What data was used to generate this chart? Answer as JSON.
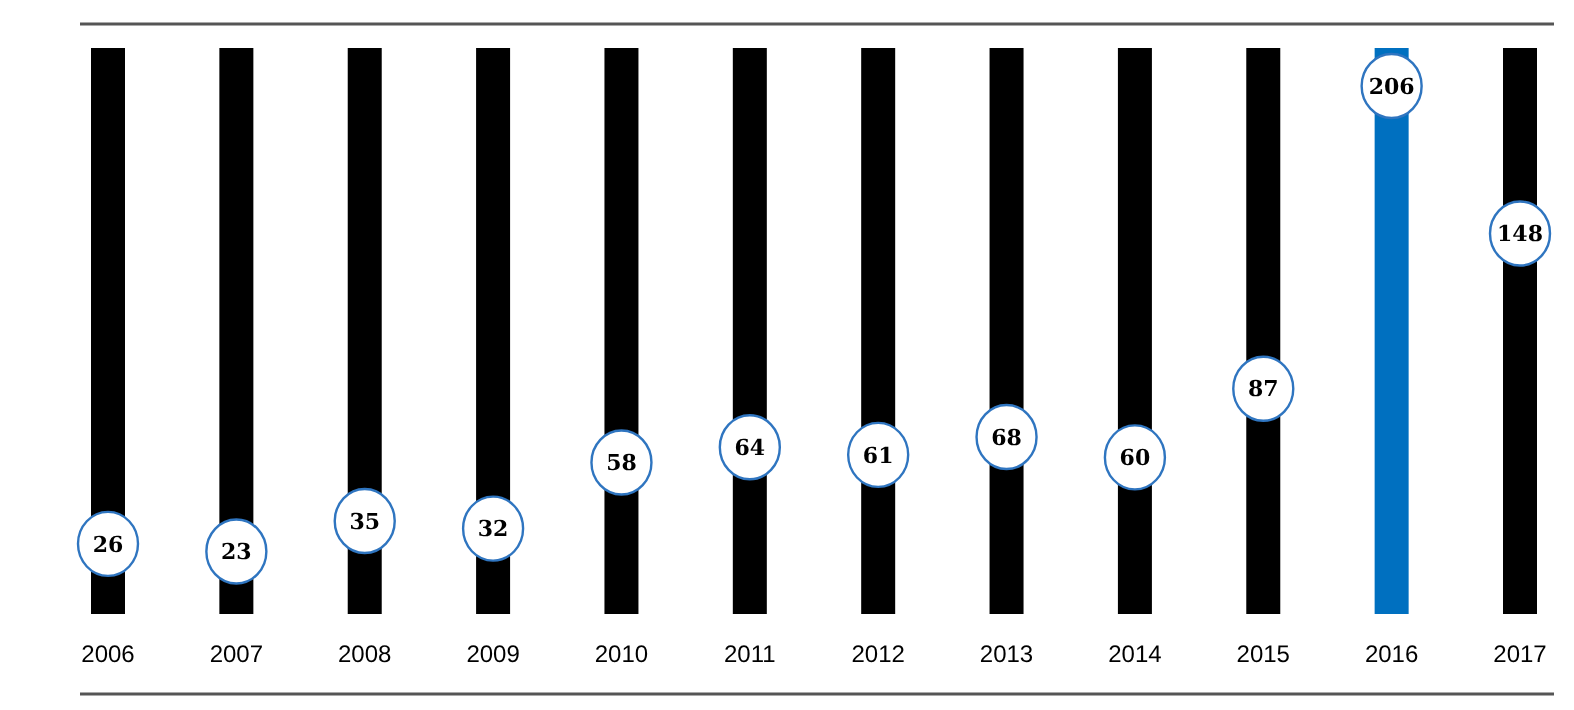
{
  "chart_data": {
    "type": "lollipop",
    "categories": [
      "2006",
      "2007",
      "2008",
      "2009",
      "2010",
      "2011",
      "2012",
      "2013",
      "2014",
      "2015",
      "2016",
      "2017"
    ],
    "values": [
      26,
      23,
      35,
      32,
      58,
      64,
      61,
      68,
      60,
      87,
      206,
      148
    ],
    "color": "#2f75c0",
    "data_labels": true,
    "marker": "circle",
    "bands": [
      {
        "axis": "x",
        "from": "2006",
        "to": "2006",
        "color": "#000000"
      },
      {
        "axis": "x",
        "from": "2007",
        "to": "2007",
        "color": "#000000"
      },
      {
        "axis": "x",
        "from": "2008",
        "to": "2008",
        "color": "#000000"
      },
      {
        "axis": "x",
        "from": "2009",
        "to": "2009",
        "color": "#000000"
      },
      {
        "axis": "x",
        "from": "2010",
        "to": "2010",
        "color": "#000000"
      },
      {
        "axis": "x",
        "from": "2011",
        "to": "2011",
        "color": "#000000"
      },
      {
        "axis": "x",
        "from": "2012",
        "to": "2012",
        "color": "#000000"
      },
      {
        "axis": "x",
        "from": "2013",
        "to": "2013",
        "color": "#000000"
      },
      {
        "axis": "x",
        "from": "2014",
        "to": "2014",
        "color": "#000000"
      },
      {
        "axis": "x",
        "from": "2015",
        "to": "2015",
        "color": "#000000"
      },
      {
        "axis": "x",
        "from": "2016",
        "to": "2016",
        "color": "#0070c0"
      },
      {
        "axis": "x",
        "from": "2017",
        "to": "2017",
        "color": "#000000"
      }
    ]
  }
}
